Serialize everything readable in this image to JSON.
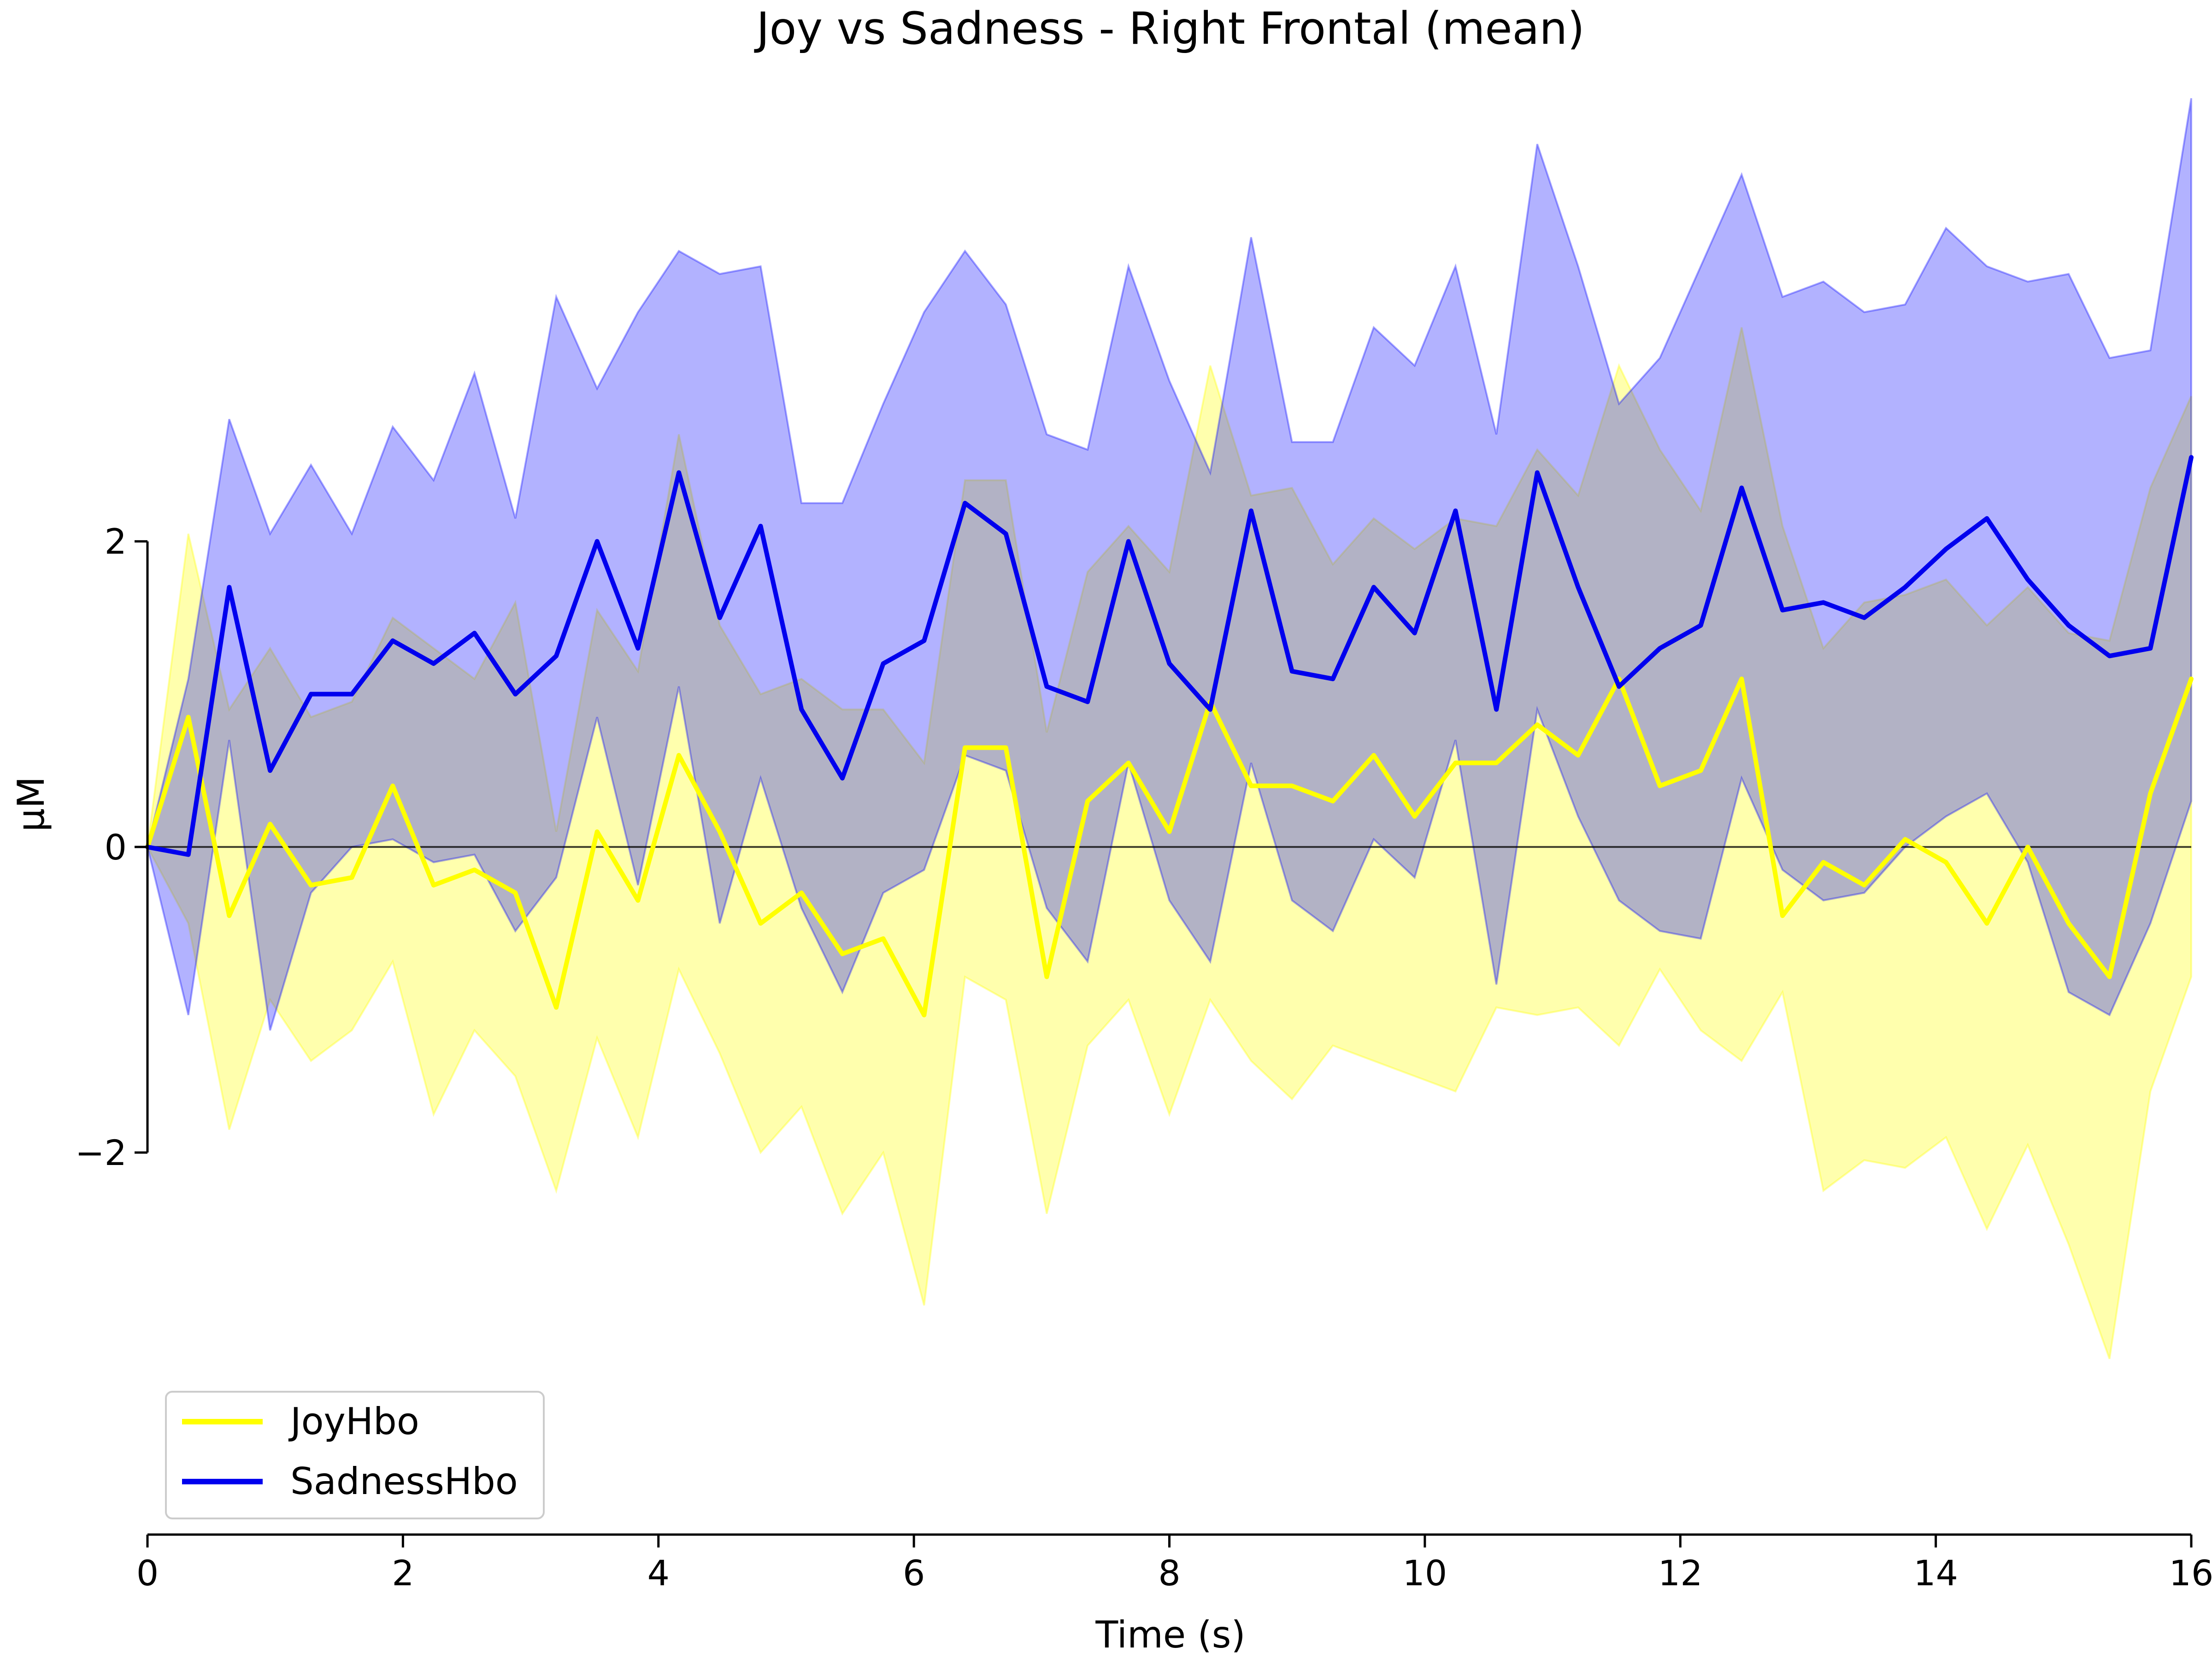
{
  "chart_data": {
    "type": "line",
    "title": "Joy vs Sadness - Right Frontal (mean)",
    "xlabel": "Time (s)",
    "ylabel": "µM",
    "xlim": [
      0,
      16
    ],
    "ylim": [
      -4.5,
      5.0
    ],
    "x_ticks": [
      "0",
      "2",
      "4",
      "6",
      "8",
      "10",
      "12",
      "14",
      "16"
    ],
    "y_ticks": [
      "−2",
      "0",
      "2"
    ],
    "grid": false,
    "legend_position": "lower-left",
    "zero_line": true,
    "x": [
      0,
      0.32,
      0.64,
      0.96,
      1.28,
      1.6,
      1.92,
      2.24,
      2.56,
      2.88,
      3.2,
      3.52,
      3.84,
      4.16,
      4.48,
      4.8,
      5.12,
      5.44,
      5.76,
      6.08,
      6.4,
      6.72,
      7.04,
      7.36,
      7.68,
      8.0,
      8.32,
      8.64,
      8.96,
      9.28,
      9.6,
      9.92,
      10.24,
      10.56,
      10.88,
      11.2,
      11.52,
      11.84,
      12.16,
      12.48,
      12.8,
      13.12,
      13.44,
      13.76,
      14.08,
      14.4,
      14.72,
      15.04,
      15.36,
      15.68,
      16.0
    ],
    "series": [
      {
        "name": "JoyHbo",
        "color": "#ffff00",
        "band_color": "#ffff00",
        "values": [
          0,
          0.85,
          -0.45,
          0.15,
          -0.25,
          -0.2,
          0.4,
          -0.25,
          -0.15,
          -0.3,
          -1.05,
          0.1,
          -0.35,
          0.6,
          0.1,
          -0.5,
          -0.3,
          -0.7,
          -0.6,
          -1.1,
          0.65,
          0.65,
          -0.85,
          0.3,
          0.55,
          0.1,
          0.95,
          0.4,
          0.4,
          0.3,
          0.6,
          0.2,
          0.55,
          0.55,
          0.8,
          0.6,
          1.1,
          0.4,
          0.5,
          1.1,
          -0.45,
          -0.1,
          -0.25,
          0.05,
          -0.1,
          -0.5,
          0.0,
          -0.5,
          -0.85,
          0.35,
          1.1
        ],
        "lower": [
          0,
          -0.5,
          -1.85,
          -1.0,
          -1.4,
          -1.2,
          -0.75,
          -1.75,
          -1.2,
          -1.5,
          -2.25,
          -1.25,
          -1.9,
          -0.8,
          -1.35,
          -2.0,
          -1.7,
          -2.4,
          -2.0,
          -3.0,
          -0.85,
          -1.0,
          -2.4,
          -1.3,
          -1.0,
          -1.75,
          -1.0,
          -1.4,
          -1.65,
          -1.3,
          -1.4,
          -1.5,
          -1.6,
          -1.05,
          -1.1,
          -1.05,
          -1.3,
          -0.8,
          -1.2,
          -1.4,
          -0.95,
          -2.25,
          -2.05,
          -2.1,
          -1.9,
          -2.5,
          -1.95,
          -2.6,
          -3.35,
          -1.6,
          -0.85
        ],
        "upper": [
          0,
          2.05,
          0.9,
          1.3,
          0.85,
          0.95,
          1.5,
          1.3,
          1.1,
          1.6,
          0.1,
          1.55,
          1.15,
          2.7,
          1.45,
          1.0,
          1.1,
          0.9,
          0.9,
          0.55,
          2.4,
          2.4,
          0.75,
          1.8,
          2.1,
          1.8,
          3.15,
          2.3,
          2.35,
          1.85,
          2.15,
          1.95,
          2.15,
          2.1,
          2.6,
          2.3,
          3.15,
          2.6,
          2.2,
          3.4,
          2.1,
          1.3,
          1.6,
          1.65,
          1.75,
          1.45,
          1.7,
          1.4,
          1.35,
          2.35,
          2.95
        ]
      },
      {
        "name": "SadnessHbo",
        "color": "#0000ee",
        "band_color": "#0000ff",
        "values": [
          0,
          -0.05,
          1.7,
          0.5,
          1.0,
          1.0,
          1.35,
          1.2,
          1.4,
          1.0,
          1.25,
          2.0,
          1.3,
          2.45,
          1.5,
          2.1,
          0.9,
          0.45,
          1.2,
          1.35,
          2.25,
          2.05,
          1.05,
          0.95,
          2.0,
          1.2,
          0.9,
          2.2,
          1.15,
          1.1,
          1.7,
          1.4,
          2.2,
          0.9,
          2.45,
          1.7,
          1.05,
          1.3,
          1.45,
          2.35,
          1.55,
          1.6,
          1.5,
          1.7,
          1.95,
          2.15,
          1.75,
          1.45,
          1.25,
          1.3,
          2.55
        ],
        "lower": [
          0,
          -1.1,
          0.7,
          -1.2,
          -0.3,
          0.0,
          0.05,
          -0.1,
          -0.05,
          -0.55,
          -0.2,
          0.85,
          -0.25,
          1.05,
          -0.5,
          0.45,
          -0.4,
          -0.95,
          -0.3,
          -0.15,
          0.6,
          0.5,
          -0.4,
          -0.75,
          0.55,
          -0.35,
          -0.75,
          0.55,
          -0.35,
          -0.55,
          0.05,
          -0.2,
          0.7,
          -0.9,
          0.9,
          0.2,
          -0.35,
          -0.55,
          -0.6,
          0.45,
          -0.15,
          -0.35,
          -0.3,
          0.0,
          0.2,
          0.35,
          -0.1,
          -0.95,
          -1.1,
          -0.5,
          0.3
        ],
        "upper": [
          0,
          1.1,
          2.8,
          2.05,
          2.5,
          2.05,
          2.75,
          2.4,
          3.1,
          2.15,
          3.6,
          3.0,
          3.5,
          3.9,
          3.75,
          3.8,
          2.25,
          2.25,
          2.9,
          3.5,
          3.9,
          3.55,
          2.7,
          2.6,
          3.8,
          3.05,
          2.45,
          3.99,
          2.65,
          2.65,
          3.4,
          3.15,
          3.8,
          2.7,
          4.6,
          3.8,
          2.9,
          3.2,
          3.8,
          4.4,
          3.6,
          3.7,
          3.5,
          3.55,
          4.05,
          3.8,
          3.7,
          3.75,
          3.2,
          3.25,
          4.9
        ]
      }
    ]
  }
}
